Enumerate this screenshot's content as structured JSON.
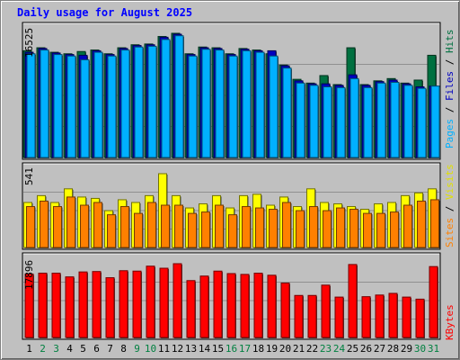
{
  "chart_data": {
    "type": "bar",
    "title": "Daily usage for August 2025",
    "categories": [
      "1",
      "2",
      "3",
      "4",
      "5",
      "6",
      "7",
      "8",
      "9",
      "10",
      "11",
      "12",
      "13",
      "14",
      "15",
      "16",
      "17",
      "18",
      "19",
      "20",
      "21",
      "22",
      "23",
      "24",
      "25",
      "26",
      "27",
      "28",
      "29",
      "30",
      "31"
    ],
    "weekend_days": [
      "2",
      "3",
      "9",
      "10",
      "16",
      "17",
      "23",
      "24",
      "30",
      "31"
    ],
    "panels": [
      {
        "id": "top",
        "ymax_label": "16525",
        "ylim": [
          0,
          16525
        ],
        "series": [
          {
            "name": "Hits",
            "color": "#007040",
            "values": [
              14200,
              14600,
              14000,
              13800,
              14100,
              14300,
              13800,
              14600,
              15000,
              15100,
              16100,
              16525,
              13800,
              14700,
              14600,
              13800,
              14500,
              14300,
              13800,
              12300,
              10400,
              9900,
              10900,
              9700,
              14600,
              9700,
              10200,
              10500,
              9900,
              10300,
              13600
            ]
          },
          {
            "name": "Files",
            "color": "#0000c0",
            "values": [
              14000,
              14500,
              13900,
              13700,
              13600,
              14200,
              13700,
              14500,
              14900,
              15000,
              16000,
              16400,
              13700,
              14600,
              14500,
              13700,
              14400,
              14200,
              14200,
              12200,
              10200,
              9800,
              9800,
              9600,
              11000,
              9600,
              10100,
              10300,
              9800,
              9400,
              9500
            ]
          },
          {
            "name": "Pages",
            "color": "#00b0ff",
            "values": [
              13800,
              14300,
              13700,
              13500,
              13000,
              14000,
              13500,
              14300,
              14700,
              14800,
              15700,
              16200,
              13500,
              14400,
              14300,
              13500,
              14200,
              14000,
              13500,
              11900,
              9900,
              9600,
              9400,
              9300,
              10500,
              9300,
              9900,
              10000,
              9600,
              9200,
              9500
            ]
          }
        ]
      },
      {
        "id": "middle",
        "ymax_label": "541",
        "ylim": [
          0,
          541
        ],
        "series": [
          {
            "name": "Visits",
            "color": "#ffff00",
            "values": [
              330,
              380,
              330,
              430,
              370,
              360,
              270,
              350,
              330,
              380,
              541,
              380,
              290,
              320,
              380,
              290,
              380,
              390,
              310,
              370,
              300,
              430,
              330,
              320,
              300,
              280,
              320,
              330,
              380,
              400,
              430
            ]
          },
          {
            "name": "Sites",
            "color": "#ff8000",
            "values": [
              300,
              340,
              300,
              370,
              310,
              330,
              240,
              300,
              250,
              330,
              310,
              310,
              250,
              260,
              310,
              240,
              300,
              290,
              280,
              330,
              270,
              300,
              270,
              290,
              280,
              250,
              250,
              260,
              310,
              340,
              350
            ]
          }
        ]
      },
      {
        "id": "bottom",
        "ymax_label": "17896",
        "ylim": [
          0,
          17896
        ],
        "series": [
          {
            "name": "KBytes",
            "color": "#ff0000",
            "values": [
              15400,
              15600,
              15600,
              14700,
              15900,
              16000,
              14500,
              16200,
              16100,
              17300,
              16800,
              17896,
              13800,
              14900,
              16100,
              15500,
              15300,
              15600,
              15100,
              13200,
              10200,
              10200,
              12700,
              9800,
              17700,
              9900,
              10300,
              10700,
              9800,
              9300,
              17200
            ]
          }
        ]
      }
    ]
  }
}
